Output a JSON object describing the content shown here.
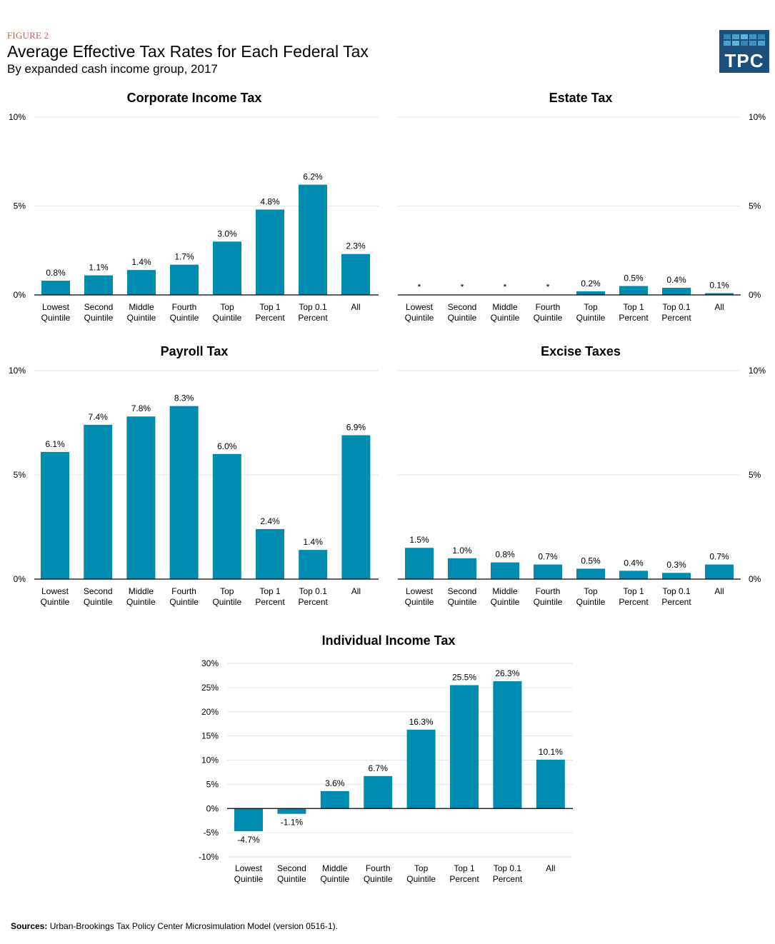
{
  "header": {
    "figure_label": "FIGURE 2",
    "title": "Average Effective Tax Rates for Each Federal Tax",
    "subtitle": "By expanded cash income group, 2017"
  },
  "logo": {
    "text": "TPC",
    "bg_color": "#1d4f7c",
    "tile_colors": [
      "#2f84b3",
      "#4aa3cc",
      "#5cb3d6",
      "#3b94c2",
      "#2f84b3",
      "#4aa3cc",
      "#5cb3d6",
      "#2f84b3",
      "#3b94c2",
      "#4aa3cc"
    ]
  },
  "colors": {
    "bar": "#008bb0",
    "grid": "#e6e6e6",
    "axis": "#000000"
  },
  "chart_data": [
    {
      "id": "corporate",
      "type": "bar",
      "title": "Corporate Income Tax",
      "categories": [
        [
          "Lowest",
          "Quintile"
        ],
        [
          "Second",
          "Quintile"
        ],
        [
          "Middle",
          "Quintile"
        ],
        [
          "Fourth",
          "Quintile"
        ],
        [
          "Top",
          "Quintile"
        ],
        [
          "Top 1",
          "Percent"
        ],
        [
          "Top 0.1",
          "Percent"
        ],
        [
          "All"
        ]
      ],
      "values": [
        0.8,
        1.1,
        1.4,
        1.7,
        3.0,
        4.8,
        6.2,
        2.3
      ],
      "labels": [
        "0.8%",
        "1.1%",
        "1.4%",
        "1.7%",
        "3.0%",
        "4.8%",
        "6.2%",
        "2.3%"
      ],
      "ylim": [
        0,
        10
      ],
      "yticks": [
        0,
        5,
        10
      ],
      "ytick_labels": [
        "0%",
        "5%",
        "10%"
      ],
      "yaxis_side": "left",
      "grid": true
    },
    {
      "id": "estate",
      "type": "bar",
      "title": "Estate Tax",
      "categories": [
        [
          "Lowest",
          "Quintile"
        ],
        [
          "Second",
          "Quintile"
        ],
        [
          "Middle",
          "Quintile"
        ],
        [
          "Fourth",
          "Quintile"
        ],
        [
          "Top",
          "Quintile"
        ],
        [
          "Top 1",
          "Percent"
        ],
        [
          "Top 0.1",
          "Percent"
        ],
        [
          "All"
        ]
      ],
      "values": [
        0,
        0,
        0,
        0,
        0.2,
        0.5,
        0.4,
        0.1
      ],
      "labels": [
        "*",
        "*",
        "*",
        "*",
        "0.2%",
        "0.5%",
        "0.4%",
        "0.1%"
      ],
      "ylim": [
        0,
        10
      ],
      "yticks": [
        0,
        5,
        10
      ],
      "ytick_labels": [
        "0%",
        "5%",
        "10%"
      ],
      "yaxis_side": "right",
      "grid": true
    },
    {
      "id": "payroll",
      "type": "bar",
      "title": "Payroll Tax",
      "categories": [
        [
          "Lowest",
          "Quintile"
        ],
        [
          "Second",
          "Quintile"
        ],
        [
          "Middle",
          "Quintile"
        ],
        [
          "Fourth",
          "Quintile"
        ],
        [
          "Top",
          "Quintile"
        ],
        [
          "Top 1",
          "Percent"
        ],
        [
          "Top 0.1",
          "Percent"
        ],
        [
          "All"
        ]
      ],
      "values": [
        6.1,
        7.4,
        7.8,
        8.3,
        6.0,
        2.4,
        1.4,
        6.9
      ],
      "labels": [
        "6.1%",
        "7.4%",
        "7.8%",
        "8.3%",
        "6.0%",
        "2.4%",
        "1.4%",
        "6.9%"
      ],
      "ylim": [
        0,
        10
      ],
      "yticks": [
        0,
        5,
        10
      ],
      "ytick_labels": [
        "0%",
        "5%",
        "10%"
      ],
      "yaxis_side": "left",
      "grid": true
    },
    {
      "id": "excise",
      "type": "bar",
      "title": "Excise Taxes",
      "categories": [
        [
          "Lowest",
          "Quintile"
        ],
        [
          "Second",
          "Quintile"
        ],
        [
          "Middle",
          "Quintile"
        ],
        [
          "Fourth",
          "Quintile"
        ],
        [
          "Top",
          "Quintile"
        ],
        [
          "Top 1",
          "Percent"
        ],
        [
          "Top 0.1",
          "Percent"
        ],
        [
          "All"
        ]
      ],
      "values": [
        1.5,
        1.0,
        0.8,
        0.7,
        0.5,
        0.4,
        0.3,
        0.7
      ],
      "labels": [
        "1.5%",
        "1.0%",
        "0.8%",
        "0.7%",
        "0.5%",
        "0.4%",
        "0.3%",
        "0.7%"
      ],
      "ylim": [
        0,
        10
      ],
      "yticks": [
        0,
        5,
        10
      ],
      "ytick_labels": [
        "0%",
        "5%",
        "10%"
      ],
      "yaxis_side": "right",
      "grid": true
    },
    {
      "id": "individual",
      "type": "bar",
      "title": "Individual Income Tax",
      "categories": [
        [
          "Lowest",
          "Quintile"
        ],
        [
          "Second",
          "Quintile"
        ],
        [
          "Middle",
          "Quintile"
        ],
        [
          "Fourth",
          "Quintile"
        ],
        [
          "Top",
          "Quintile"
        ],
        [
          "Top 1",
          "Percent"
        ],
        [
          "Top 0.1",
          "Percent"
        ],
        [
          "All"
        ]
      ],
      "values": [
        -4.7,
        -1.1,
        3.6,
        6.7,
        16.3,
        25.5,
        26.3,
        10.1
      ],
      "labels": [
        "-4.7%",
        "-1.1%",
        "3.6%",
        "6.7%",
        "16.3%",
        "25.5%",
        "26.3%",
        "10.1%"
      ],
      "ylim": [
        -10,
        30
      ],
      "yticks": [
        -10,
        -5,
        0,
        5,
        10,
        15,
        20,
        25,
        30
      ],
      "ytick_labels": [
        "-10%",
        "-5%",
        "0%",
        "5%",
        "10%",
        "15%",
        "20%",
        "25%",
        "30%"
      ],
      "yaxis_side": "left",
      "grid": true
    }
  ],
  "footer": {
    "sources_label": "Sources:",
    "sources_text": "Urban-Brookings Tax Policy Center Microsimulation Model (version 0516-1)."
  }
}
